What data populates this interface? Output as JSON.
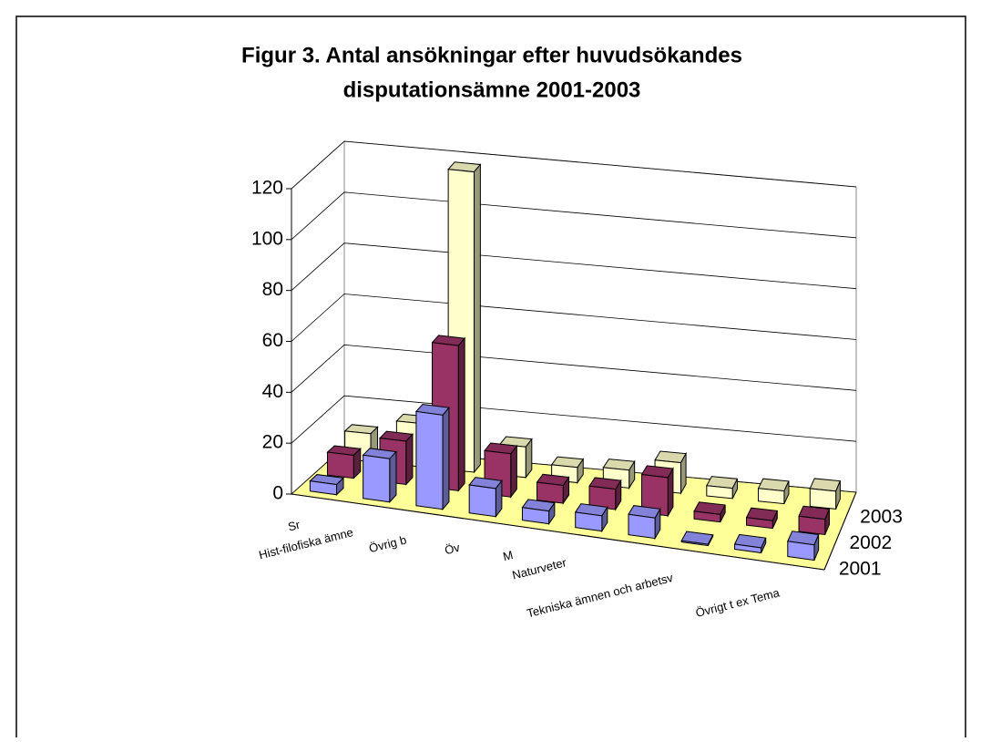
{
  "chart_data": {
    "type": "bar3d",
    "title": [
      "Figur 3. Antal ansökningar efter huvudsökandes",
      "disputationsämne 2001-2003"
    ],
    "categories": [
      "Sr",
      "Hist-filofiska ämne",
      "Övrig b",
      "Öv",
      "M",
      "Naturveter",
      null,
      "Tekniska ämnen och arbetsv",
      null,
      "Övrigt t ex Tema"
    ],
    "series": [
      {
        "name": "2001",
        "color": "#9999ff",
        "values": [
          4,
          17,
          37,
          11,
          5,
          6,
          8,
          0.5,
          2,
          6
        ]
      },
      {
        "name": "2002",
        "color": "#993366",
        "values": [
          9,
          17,
          57,
          17,
          7,
          8,
          15,
          3,
          3,
          6
        ]
      },
      {
        "name": "2003",
        "color": "#ffffcc",
        "values": [
          11,
          17,
          118,
          12,
          6,
          7,
          12,
          4,
          5,
          7
        ]
      }
    ],
    "ylim": [
      0,
      120
    ],
    "yticks": [
      0,
      20,
      40,
      60,
      80,
      100,
      120
    ],
    "grid": true,
    "floor_color": "#ffff99"
  }
}
